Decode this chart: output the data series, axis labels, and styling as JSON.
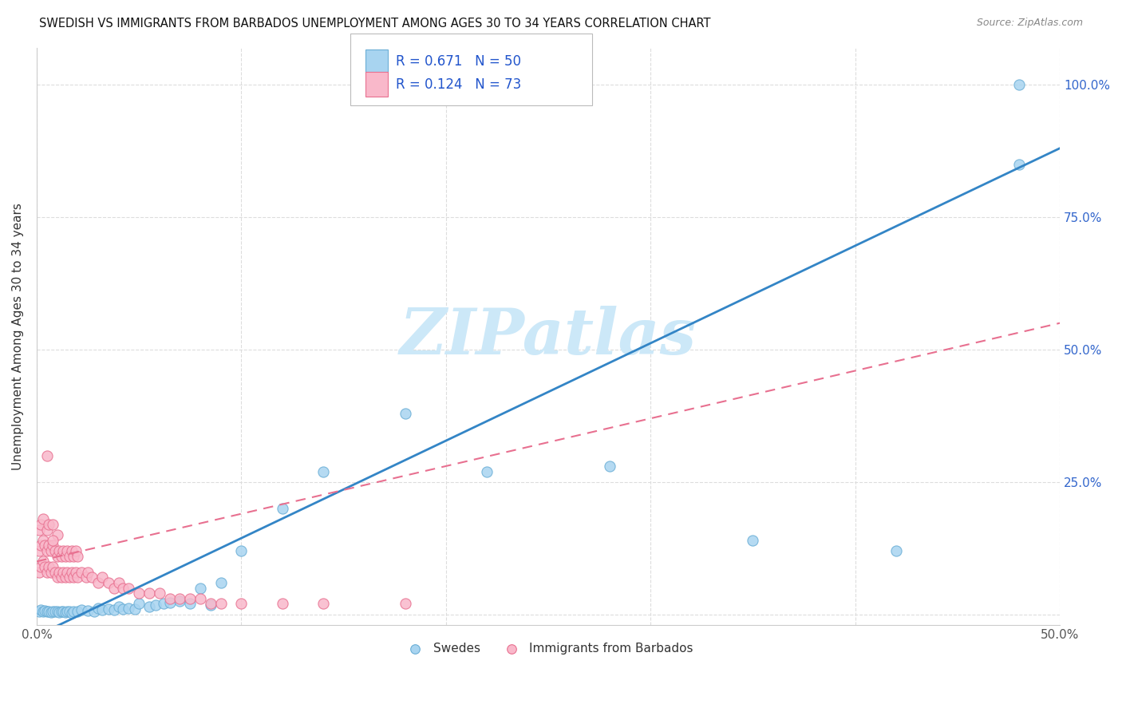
{
  "title": "SWEDISH VS IMMIGRANTS FROM BARBADOS UNEMPLOYMENT AMONG AGES 30 TO 34 YEARS CORRELATION CHART",
  "source": "Source: ZipAtlas.com",
  "ylabel": "Unemployment Among Ages 30 to 34 years",
  "xlim": [
    0.0,
    0.5
  ],
  "ylim": [
    -0.02,
    1.07
  ],
  "xticks": [
    0.0,
    0.1,
    0.2,
    0.3,
    0.4,
    0.5
  ],
  "xticklabels": [
    "0.0%",
    "",
    "",
    "",
    "",
    "50.0%"
  ],
  "yticks": [
    0.0,
    0.25,
    0.5,
    0.75,
    1.0
  ],
  "yticklabels": [
    "",
    "25.0%",
    "50.0%",
    "75.0%",
    "100.0%"
  ],
  "swedes_color": "#a8d4f0",
  "swedes_edge_color": "#6aaed6",
  "barbados_color": "#f9b8ca",
  "barbados_edge_color": "#e87090",
  "swedes_line_color": "#3385c6",
  "barbados_line_color": "#e87090",
  "legend_R_color": "#2255cc",
  "watermark_color": "#cce8f8",
  "watermark": "ZIPatlas",
  "swedes_R": 0.671,
  "swedes_N": 50,
  "barbados_R": 0.124,
  "barbados_N": 73,
  "swedes_line_x0": 0.0,
  "swedes_line_y0": -0.04,
  "swedes_line_x1": 0.5,
  "swedes_line_y1": 0.88,
  "barbados_line_x0": 0.0,
  "barbados_line_y0": 0.1,
  "barbados_line_x1": 0.5,
  "barbados_line_y1": 0.55,
  "swedes_pts_x": [
    0.001,
    0.002,
    0.003,
    0.004,
    0.005,
    0.006,
    0.007,
    0.008,
    0.009,
    0.01,
    0.011,
    0.012,
    0.013,
    0.014,
    0.015,
    0.016,
    0.017,
    0.018,
    0.02,
    0.022,
    0.025,
    0.028,
    0.03,
    0.032,
    0.035,
    0.038,
    0.04,
    0.042,
    0.045,
    0.048,
    0.05,
    0.055,
    0.058,
    0.062,
    0.065,
    0.07,
    0.075,
    0.08,
    0.085,
    0.09,
    0.1,
    0.12,
    0.14,
    0.18,
    0.22,
    0.28,
    0.35,
    0.42,
    0.48,
    0.48
  ],
  "swedes_pts_y": [
    0.005,
    0.008,
    0.005,
    0.007,
    0.005,
    0.006,
    0.004,
    0.005,
    0.006,
    0.005,
    0.004,
    0.006,
    0.005,
    0.004,
    0.006,
    0.005,
    0.003,
    0.005,
    0.006,
    0.008,
    0.007,
    0.006,
    0.012,
    0.008,
    0.01,
    0.008,
    0.015,
    0.01,
    0.012,
    0.01,
    0.02,
    0.015,
    0.018,
    0.02,
    0.022,
    0.025,
    0.02,
    0.05,
    0.018,
    0.06,
    0.12,
    0.2,
    0.27,
    0.38,
    0.27,
    0.28,
    0.14,
    0.12,
    1.0,
    0.85
  ],
  "barbados_pts_x": [
    0.001,
    0.001,
    0.001,
    0.002,
    0.002,
    0.002,
    0.003,
    0.003,
    0.003,
    0.004,
    0.004,
    0.005,
    0.005,
    0.005,
    0.006,
    0.006,
    0.006,
    0.007,
    0.007,
    0.008,
    0.008,
    0.008,
    0.009,
    0.009,
    0.01,
    0.01,
    0.01,
    0.011,
    0.011,
    0.012,
    0.012,
    0.013,
    0.013,
    0.014,
    0.014,
    0.015,
    0.015,
    0.016,
    0.016,
    0.017,
    0.017,
    0.018,
    0.018,
    0.019,
    0.019,
    0.02,
    0.02,
    0.022,
    0.024,
    0.025,
    0.027,
    0.03,
    0.032,
    0.035,
    0.038,
    0.04,
    0.042,
    0.045,
    0.05,
    0.055,
    0.06,
    0.065,
    0.07,
    0.075,
    0.08,
    0.085,
    0.09,
    0.1,
    0.12,
    0.14,
    0.18,
    0.005,
    0.008
  ],
  "barbados_pts_y": [
    0.08,
    0.12,
    0.16,
    0.09,
    0.13,
    0.17,
    0.1,
    0.14,
    0.18,
    0.09,
    0.13,
    0.08,
    0.12,
    0.16,
    0.09,
    0.13,
    0.17,
    0.08,
    0.12,
    0.09,
    0.13,
    0.17,
    0.08,
    0.12,
    0.07,
    0.11,
    0.15,
    0.08,
    0.12,
    0.07,
    0.11,
    0.08,
    0.12,
    0.07,
    0.11,
    0.08,
    0.12,
    0.07,
    0.11,
    0.08,
    0.12,
    0.07,
    0.11,
    0.08,
    0.12,
    0.07,
    0.11,
    0.08,
    0.07,
    0.08,
    0.07,
    0.06,
    0.07,
    0.06,
    0.05,
    0.06,
    0.05,
    0.05,
    0.04,
    0.04,
    0.04,
    0.03,
    0.03,
    0.03,
    0.03,
    0.02,
    0.02,
    0.02,
    0.02,
    0.02,
    0.02,
    0.3,
    0.14
  ]
}
